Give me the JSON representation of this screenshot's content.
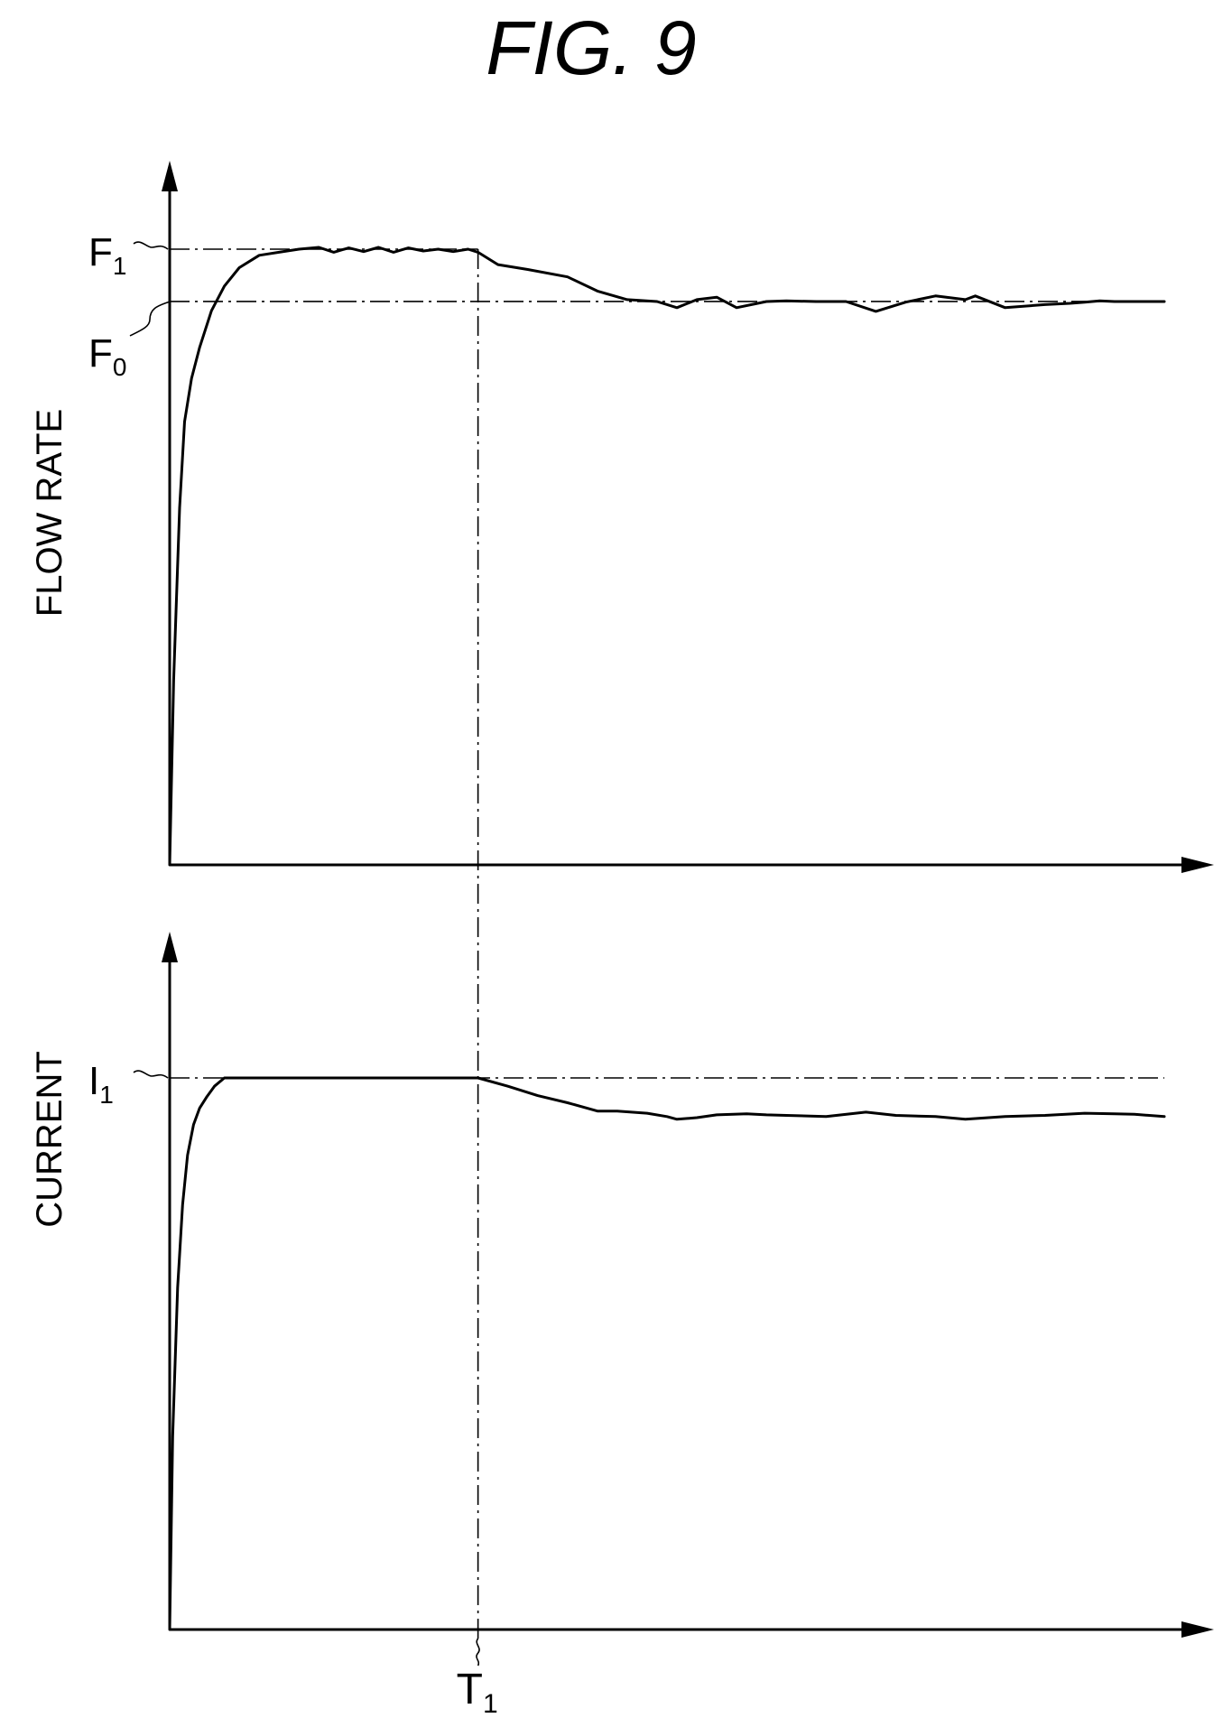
{
  "figure_title": "FIG. 9",
  "chart_data": [
    {
      "type": "line",
      "ylabel": "FLOW RATE",
      "reference_levels": [
        {
          "base": "F",
          "sub": "1",
          "value": 1.0,
          "extends_to_x": 0.31
        },
        {
          "base": "F",
          "sub": "0",
          "value": 0.915,
          "extends_to_x": 1.0
        }
      ],
      "series": [
        {
          "x": [
            0,
            0.004,
            0.01,
            0.015,
            0.022,
            0.03,
            0.042,
            0.055,
            0.07,
            0.09,
            0.11,
            0.13,
            0.15,
            0.165,
            0.18,
            0.195,
            0.21,
            0.225,
            0.24,
            0.255,
            0.27,
            0.285,
            0.3,
            0.31,
            0.33,
            0.36,
            0.4,
            0.43,
            0.46,
            0.49,
            0.51,
            0.53,
            0.55,
            0.57,
            0.6,
            0.62,
            0.65,
            0.68,
            0.71,
            0.74,
            0.77,
            0.8,
            0.81,
            0.84,
            0.88,
            0.905,
            0.92,
            0.935,
            0.95,
            0.96,
            0.98,
            1.0
          ],
          "y": [
            0,
            0.3,
            0.58,
            0.72,
            0.79,
            0.84,
            0.9,
            0.94,
            0.97,
            0.99,
            0.995,
            1.0,
            1.003,
            0.995,
            1.002,
            0.996,
            1.003,
            0.995,
            1.002,
            0.997,
            1.0,
            0.996,
            1.0,
            0.995,
            0.975,
            0.967,
            0.955,
            0.932,
            0.918,
            0.915,
            0.905,
            0.918,
            0.922,
            0.905,
            0.915,
            0.916,
            0.915,
            0.915,
            0.899,
            0.914,
            0.924,
            0.918,
            0.924,
            0.905,
            0.91,
            0.912,
            0.914,
            0.916,
            0.915,
            0.915,
            0.915,
            0.915
          ]
        }
      ]
    },
    {
      "type": "line",
      "ylabel": "CURRENT",
      "reference_levels": [
        {
          "base": "I",
          "sub": "1",
          "value": 1.0,
          "extends_to_x": 1.0
        }
      ],
      "x_markers": [
        {
          "base": "T",
          "sub": "1",
          "x": 0.31
        }
      ],
      "series": [
        {
          "x": [
            0,
            0.003,
            0.008,
            0.013,
            0.018,
            0.024,
            0.03,
            0.037,
            0.045,
            0.055,
            0.07,
            0.1,
            0.15,
            0.2,
            0.25,
            0.3,
            0.31,
            0.34,
            0.37,
            0.4,
            0.43,
            0.45,
            0.48,
            0.5,
            0.51,
            0.53,
            0.55,
            0.58,
            0.6,
            0.62,
            0.66,
            0.7,
            0.73,
            0.77,
            0.8,
            0.84,
            0.88,
            0.92,
            0.95,
            0.97,
            1.0
          ],
          "y": [
            0,
            0.35,
            0.62,
            0.77,
            0.86,
            0.915,
            0.945,
            0.965,
            0.985,
            1.0,
            1.0,
            1.0,
            1.0,
            1.0,
            1.0,
            1.0,
            1.0,
            0.985,
            0.968,
            0.955,
            0.94,
            0.94,
            0.936,
            0.93,
            0.925,
            0.928,
            0.933,
            0.935,
            0.933,
            0.932,
            0.93,
            0.938,
            0.932,
            0.93,
            0.925,
            0.93,
            0.932,
            0.936,
            0.935,
            0.934,
            0.93
          ]
        }
      ]
    }
  ]
}
